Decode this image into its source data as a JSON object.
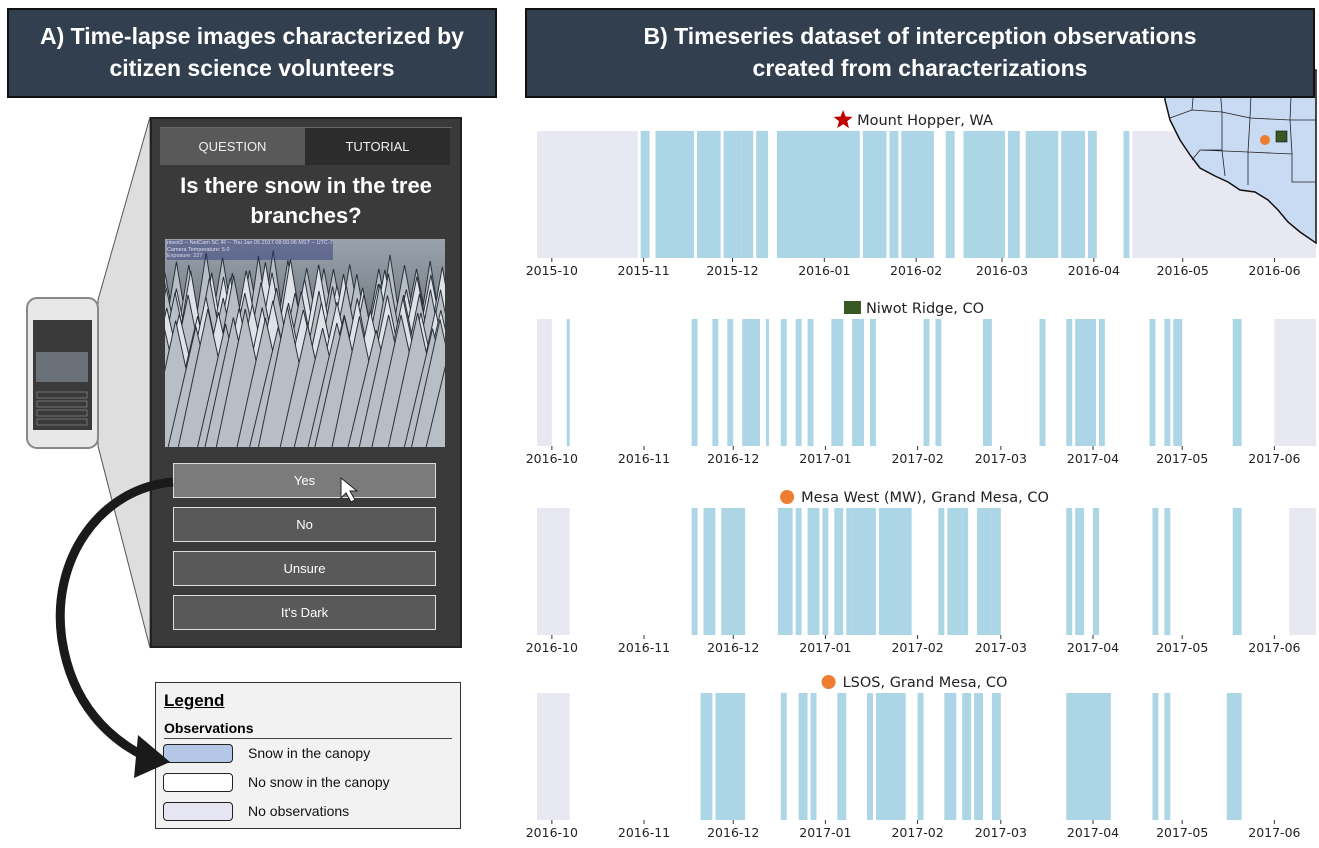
{
  "panel_a": {
    "title_lines": [
      "A) Time-lapse images characterized by",
      "citizen science volunteers"
    ],
    "tabs": [
      "QUESTION",
      "TUTORIAL"
    ],
    "question": "Is there snow in the tree branches?",
    "image_caption": [
      "niwot3 -- NetCam SC IR -- Thu Jan 05 2017 08:00:06 MST -- UTC-7",
      "Camera Temperature: 5.0",
      "Exposure: 227"
    ],
    "buttons": [
      "Yes",
      "No",
      "Unsure",
      "It's Dark"
    ]
  },
  "legend": {
    "title": "Legend",
    "subtitle": "Observations",
    "items": [
      {
        "label": "Snow in the canopy",
        "color": "#b4c7e7"
      },
      {
        "label": "No snow in the canopy",
        "color": "#ffffff"
      },
      {
        "label": "No observations",
        "color": "#e6e6f2"
      }
    ]
  },
  "panel_b": {
    "title_lines": [
      "B) Timeseries dataset of interception observations",
      "created from characterizations"
    ]
  },
  "chart_data": [
    {
      "type": "timeline",
      "title": "Mount Hopper, WA",
      "marker": "star",
      "marker_color": "#c00000",
      "xlim": [
        "2015-09-26",
        "2016-06-14"
      ],
      "xticks": [
        "2015-10",
        "2015-11",
        "2015-12",
        "2016-01",
        "2016-02",
        "2016-03",
        "2016-04",
        "2016-05",
        "2016-06"
      ],
      "observed": [
        "2015-10-30",
        "2016-04-13"
      ],
      "snow": [
        [
          "2015-10-31",
          "2015-11-02"
        ],
        [
          "2015-11-05",
          "2015-11-06"
        ],
        [
          "2015-11-07",
          "2015-11-17"
        ],
        [
          "2015-11-19",
          "2015-11-26"
        ],
        [
          "2015-11-28",
          "2015-12-03"
        ],
        [
          "2015-12-04",
          "2015-12-07"
        ],
        [
          "2015-12-09",
          "2015-12-12"
        ],
        [
          "2015-12-16",
          "2016-01-12"
        ],
        [
          "2016-01-14",
          "2016-01-21"
        ],
        [
          "2016-01-23",
          "2016-01-25"
        ],
        [
          "2016-01-27",
          "2016-02-06"
        ],
        [
          "2016-02-11",
          "2016-02-13"
        ],
        [
          "2016-02-17",
          "2016-03-01"
        ],
        [
          "2016-03-03",
          "2016-03-06"
        ],
        [
          "2016-03-09",
          "2016-03-19"
        ],
        [
          "2016-03-21",
          "2016-03-28"
        ],
        [
          "2016-03-30",
          "2016-04-01"
        ],
        [
          "2016-04-11",
          "2016-04-12"
        ]
      ],
      "snow_color": "#acd6e6",
      "no_snow_color": "#ffffff",
      "no_obs_color": "#e8e8f2"
    },
    {
      "type": "timeline",
      "title": "Niwot Ridge, CO",
      "marker": "square",
      "marker_color": "#385723",
      "xlim": [
        "2016-09-26",
        "2017-06-14"
      ],
      "xticks": [
        "2016-10",
        "2016-11",
        "2016-12",
        "2017-01",
        "2017-02",
        "2017-03",
        "2017-04",
        "2017-05",
        "2017-06"
      ],
      "observed": [
        "2016-10-01",
        "2017-05-31"
      ],
      "snow": [
        [
          "2016-10-06",
          "2016-10-06"
        ],
        [
          "2016-11-17",
          "2016-11-18"
        ],
        [
          "2016-11-24",
          "2016-11-25"
        ],
        [
          "2016-11-29",
          "2016-11-30"
        ],
        [
          "2016-12-04",
          "2016-12-09"
        ],
        [
          "2016-12-12",
          "2016-12-12"
        ],
        [
          "2016-12-17",
          "2016-12-18"
        ],
        [
          "2016-12-22",
          "2016-12-23"
        ],
        [
          "2016-12-26",
          "2016-12-27"
        ],
        [
          "2017-01-03",
          "2017-01-06"
        ],
        [
          "2017-01-10",
          "2017-01-13"
        ],
        [
          "2017-01-16",
          "2017-01-17"
        ],
        [
          "2017-02-03",
          "2017-02-04"
        ],
        [
          "2017-02-07",
          "2017-02-08"
        ],
        [
          "2017-02-23",
          "2017-02-25"
        ],
        [
          "2017-03-14",
          "2017-03-15"
        ],
        [
          "2017-03-23",
          "2017-03-24"
        ],
        [
          "2017-03-26",
          "2017-04-01"
        ],
        [
          "2017-04-03",
          "2017-04-04"
        ],
        [
          "2017-04-20",
          "2017-04-21"
        ],
        [
          "2017-04-25",
          "2017-04-26"
        ],
        [
          "2017-04-28",
          "2017-04-30"
        ],
        [
          "2017-05-18",
          "2017-05-20"
        ]
      ],
      "snow_color": "#acd6e6",
      "no_snow_color": "#ffffff",
      "no_obs_color": "#e8e8f2"
    },
    {
      "type": "timeline",
      "title": "Mesa West (MW), Grand Mesa, CO",
      "marker": "circle",
      "marker_color": "#ed7d31",
      "xlim": [
        "2016-09-26",
        "2017-06-14"
      ],
      "xticks": [
        "2016-10",
        "2016-11",
        "2016-12",
        "2017-01",
        "2017-02",
        "2017-03",
        "2017-04",
        "2017-05",
        "2017-06"
      ],
      "observed": [
        "2016-10-07",
        "2017-06-05"
      ],
      "snow": [
        [
          "2016-11-17",
          "2016-11-18"
        ],
        [
          "2016-11-21",
          "2016-11-24"
        ],
        [
          "2016-11-27",
          "2016-12-04"
        ],
        [
          "2016-12-16",
          "2016-12-20"
        ],
        [
          "2016-12-22",
          "2016-12-23"
        ],
        [
          "2016-12-26",
          "2016-12-29"
        ],
        [
          "2016-12-31",
          "2017-01-01"
        ],
        [
          "2017-01-04",
          "2017-01-06"
        ],
        [
          "2017-01-08",
          "2017-01-09"
        ],
        [
          "2017-01-10",
          "2017-01-17"
        ],
        [
          "2017-01-19",
          "2017-01-29"
        ],
        [
          "2017-02-08",
          "2017-02-09"
        ],
        [
          "2017-02-11",
          "2017-02-15"
        ],
        [
          "2017-02-16",
          "2017-02-17"
        ],
        [
          "2017-02-21",
          "2017-02-25"
        ],
        [
          "2017-02-26",
          "2017-02-28"
        ],
        [
          "2017-03-23",
          "2017-03-24"
        ],
        [
          "2017-03-26",
          "2017-03-28"
        ],
        [
          "2017-04-01",
          "2017-04-02"
        ],
        [
          "2017-04-21",
          "2017-04-22"
        ],
        [
          "2017-04-25",
          "2017-04-26"
        ],
        [
          "2017-05-18",
          "2017-05-20"
        ]
      ],
      "snow_color": "#acd6e6",
      "no_snow_color": "#ffffff",
      "no_obs_color": "#e8e8f2"
    },
    {
      "type": "timeline",
      "title": "LSOS, Grand Mesa, CO",
      "marker": "circle",
      "marker_color": "#ed7d31",
      "xlim": [
        "2016-09-26",
        "2017-06-14"
      ],
      "xticks": [
        "2016-10",
        "2016-11",
        "2016-12",
        "2017-01",
        "2017-02",
        "2017-03",
        "2017-04",
        "2017-05",
        "2017-06"
      ],
      "observed": [
        "2016-10-07",
        "2017-06-14"
      ],
      "snow": [
        [
          "2016-11-20",
          "2016-11-23"
        ],
        [
          "2016-11-25",
          "2016-12-04"
        ],
        [
          "2016-12-17",
          "2016-12-18"
        ],
        [
          "2016-12-23",
          "2016-12-25"
        ],
        [
          "2016-12-27",
          "2016-12-28"
        ],
        [
          "2017-01-05",
          "2017-01-07"
        ],
        [
          "2017-01-15",
          "2017-01-16"
        ],
        [
          "2017-01-18",
          "2017-01-27"
        ],
        [
          "2017-02-01",
          "2017-02-02"
        ],
        [
          "2017-02-10",
          "2017-02-13"
        ],
        [
          "2017-02-16",
          "2017-02-18"
        ],
        [
          "2017-02-20",
          "2017-02-22"
        ],
        [
          "2017-02-26",
          "2017-02-28"
        ],
        [
          "2017-03-23",
          "2017-04-06"
        ],
        [
          "2017-04-21",
          "2017-04-22"
        ],
        [
          "2017-04-25",
          "2017-04-26"
        ],
        [
          "2017-05-16",
          "2017-05-20"
        ]
      ],
      "snow_color": "#acd6e6",
      "no_snow_color": "#ffffff",
      "no_obs_color": "#e8e8f2"
    }
  ]
}
